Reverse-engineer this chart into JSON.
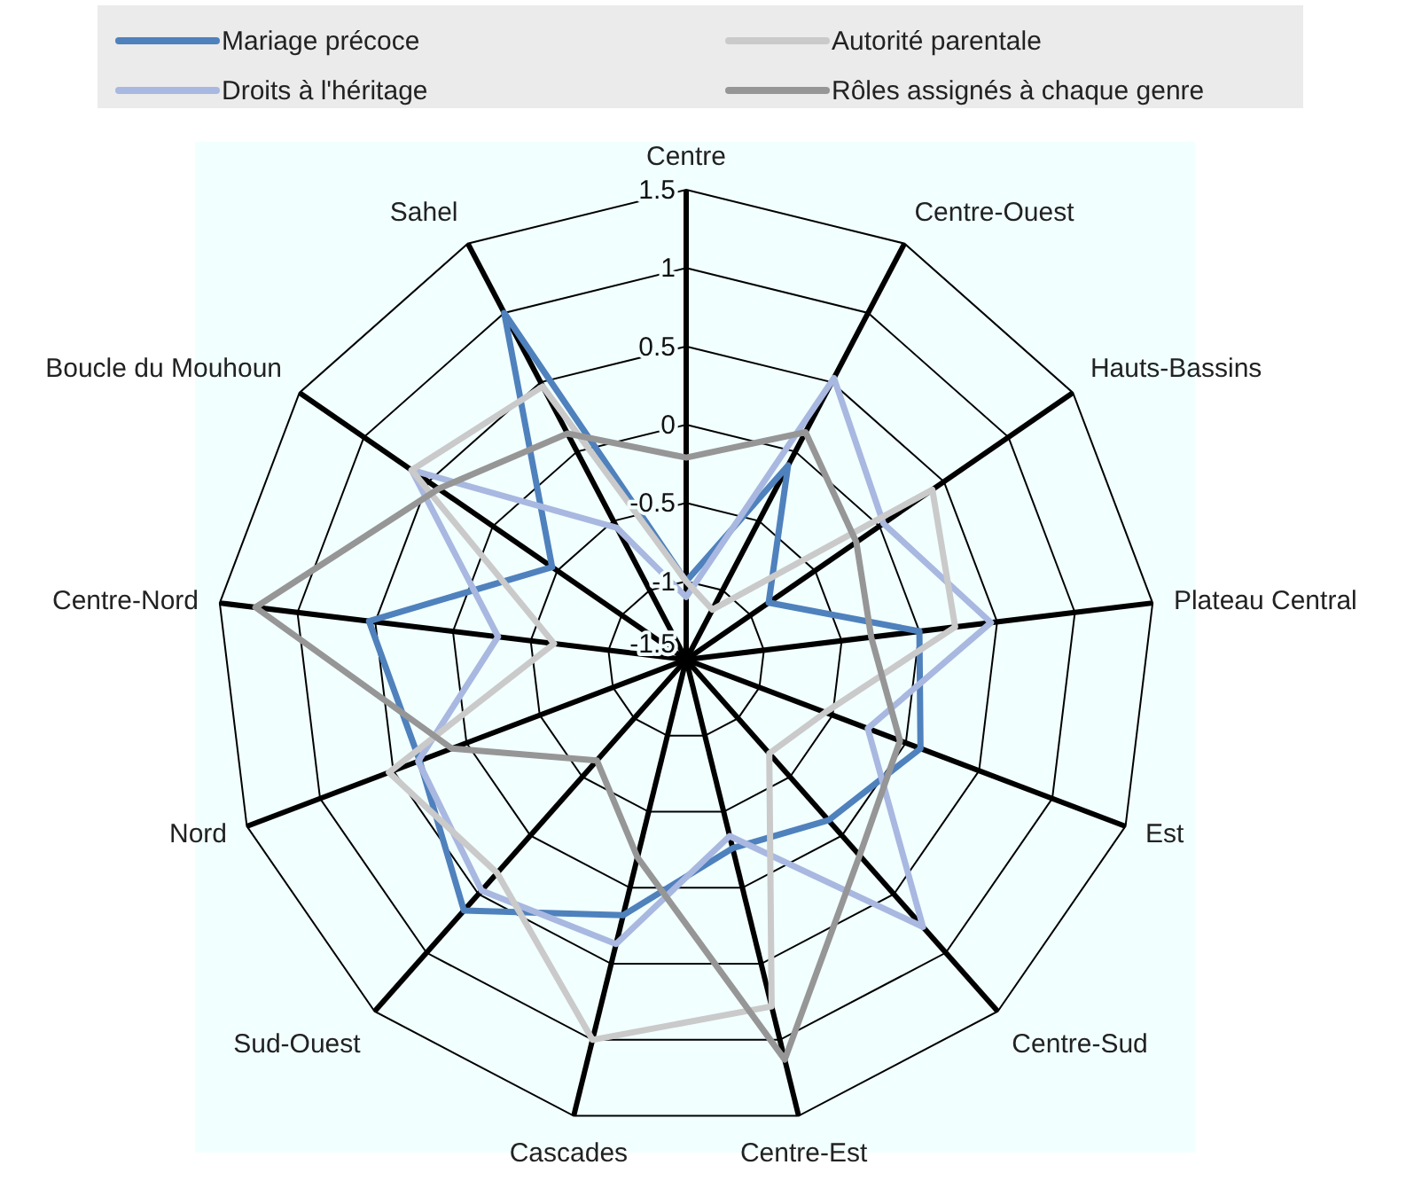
{
  "chart_data": {
    "type": "radar",
    "categories": [
      "Centre",
      "Centre-Ouest",
      "Hauts-Bassins",
      "Plateau Central",
      "Est",
      "Centre-Sud",
      "Centre-Est",
      "Cascades",
      "Sud-Ouest",
      "Nord",
      "Centre-Nord",
      "Boucle du Mouhoun",
      "Sahel"
    ],
    "ylim": [
      -1.5,
      1.5
    ],
    "yticks": [
      -1.5,
      -1,
      -0.5,
      0,
      0.5,
      1,
      1.5
    ],
    "grid": true,
    "legend": "top",
    "line_style": "solid",
    "marker": "none",
    "series": [
      {
        "name": "Mariage précoce",
        "color": "#4f81bd",
        "values": [
          -1.0,
          -0.1,
          -0.86,
          0.0,
          0.1,
          -0.13,
          -0.26,
          0.18,
          0.64,
          0.32,
          0.54,
          -0.46,
          1.0
        ]
      },
      {
        "name": "Droits à l'héritage",
        "color": "#a9b8e0",
        "values": [
          -1.1,
          0.53,
          0.03,
          0.46,
          -0.26,
          0.78,
          -0.34,
          0.37,
          0.47,
          0.33,
          -0.29,
          0.63,
          -0.55
        ]
      },
      {
        "name": "Autorité parentale",
        "color": "#cacaca",
        "values": [
          -1.0,
          -1.14,
          0.41,
          0.23,
          -0.55,
          -0.7,
          0.78,
          1.0,
          0.32,
          0.53,
          -0.65,
          0.63,
          0.47
        ]
      },
      {
        "name": "Rôles assignés à chaque genre",
        "color": "#969696",
        "values": [
          -0.21,
          0.14,
          -0.18,
          -0.31,
          -0.04,
          0.17,
          1.13,
          -0.2,
          -0.64,
          0.1,
          1.27,
          0.42,
          0.13
        ]
      }
    ]
  }
}
